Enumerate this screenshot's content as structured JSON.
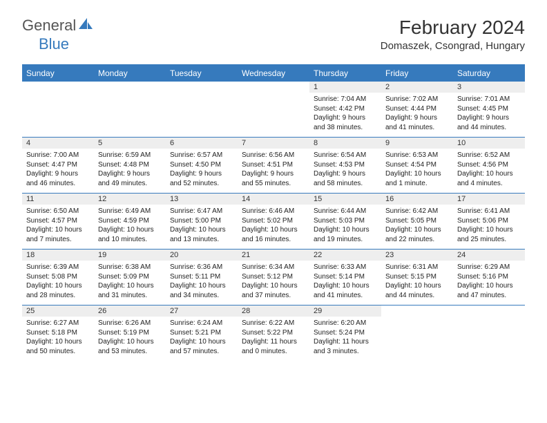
{
  "brand": {
    "part1": "General",
    "part2": "Blue"
  },
  "title": "February 2024",
  "location": "Domaszek, Csongrad, Hungary",
  "colors": {
    "header_bg": "#367abd",
    "header_fg": "#ffffff",
    "daynum_bg": "#eeeeee",
    "border": "#367abd",
    "text": "#222222"
  },
  "fonts": {
    "title_size": 28,
    "location_size": 15,
    "dayhead_size": 12,
    "daynum_size": 11,
    "body_size": 10
  },
  "dayNames": [
    "Sunday",
    "Monday",
    "Tuesday",
    "Wednesday",
    "Thursday",
    "Friday",
    "Saturday"
  ],
  "grid": [
    [
      null,
      null,
      null,
      null,
      {
        "n": "1",
        "sr": "Sunrise: 7:04 AM",
        "ss": "Sunset: 4:42 PM",
        "dl": "Daylight: 9 hours and 38 minutes."
      },
      {
        "n": "2",
        "sr": "Sunrise: 7:02 AM",
        "ss": "Sunset: 4:44 PM",
        "dl": "Daylight: 9 hours and 41 minutes."
      },
      {
        "n": "3",
        "sr": "Sunrise: 7:01 AM",
        "ss": "Sunset: 4:45 PM",
        "dl": "Daylight: 9 hours and 44 minutes."
      }
    ],
    [
      {
        "n": "4",
        "sr": "Sunrise: 7:00 AM",
        "ss": "Sunset: 4:47 PM",
        "dl": "Daylight: 9 hours and 46 minutes."
      },
      {
        "n": "5",
        "sr": "Sunrise: 6:59 AM",
        "ss": "Sunset: 4:48 PM",
        "dl": "Daylight: 9 hours and 49 minutes."
      },
      {
        "n": "6",
        "sr": "Sunrise: 6:57 AM",
        "ss": "Sunset: 4:50 PM",
        "dl": "Daylight: 9 hours and 52 minutes."
      },
      {
        "n": "7",
        "sr": "Sunrise: 6:56 AM",
        "ss": "Sunset: 4:51 PM",
        "dl": "Daylight: 9 hours and 55 minutes."
      },
      {
        "n": "8",
        "sr": "Sunrise: 6:54 AM",
        "ss": "Sunset: 4:53 PM",
        "dl": "Daylight: 9 hours and 58 minutes."
      },
      {
        "n": "9",
        "sr": "Sunrise: 6:53 AM",
        "ss": "Sunset: 4:54 PM",
        "dl": "Daylight: 10 hours and 1 minute."
      },
      {
        "n": "10",
        "sr": "Sunrise: 6:52 AM",
        "ss": "Sunset: 4:56 PM",
        "dl": "Daylight: 10 hours and 4 minutes."
      }
    ],
    [
      {
        "n": "11",
        "sr": "Sunrise: 6:50 AM",
        "ss": "Sunset: 4:57 PM",
        "dl": "Daylight: 10 hours and 7 minutes."
      },
      {
        "n": "12",
        "sr": "Sunrise: 6:49 AM",
        "ss": "Sunset: 4:59 PM",
        "dl": "Daylight: 10 hours and 10 minutes."
      },
      {
        "n": "13",
        "sr": "Sunrise: 6:47 AM",
        "ss": "Sunset: 5:00 PM",
        "dl": "Daylight: 10 hours and 13 minutes."
      },
      {
        "n": "14",
        "sr": "Sunrise: 6:46 AM",
        "ss": "Sunset: 5:02 PM",
        "dl": "Daylight: 10 hours and 16 minutes."
      },
      {
        "n": "15",
        "sr": "Sunrise: 6:44 AM",
        "ss": "Sunset: 5:03 PM",
        "dl": "Daylight: 10 hours and 19 minutes."
      },
      {
        "n": "16",
        "sr": "Sunrise: 6:42 AM",
        "ss": "Sunset: 5:05 PM",
        "dl": "Daylight: 10 hours and 22 minutes."
      },
      {
        "n": "17",
        "sr": "Sunrise: 6:41 AM",
        "ss": "Sunset: 5:06 PM",
        "dl": "Daylight: 10 hours and 25 minutes."
      }
    ],
    [
      {
        "n": "18",
        "sr": "Sunrise: 6:39 AM",
        "ss": "Sunset: 5:08 PM",
        "dl": "Daylight: 10 hours and 28 minutes."
      },
      {
        "n": "19",
        "sr": "Sunrise: 6:38 AM",
        "ss": "Sunset: 5:09 PM",
        "dl": "Daylight: 10 hours and 31 minutes."
      },
      {
        "n": "20",
        "sr": "Sunrise: 6:36 AM",
        "ss": "Sunset: 5:11 PM",
        "dl": "Daylight: 10 hours and 34 minutes."
      },
      {
        "n": "21",
        "sr": "Sunrise: 6:34 AM",
        "ss": "Sunset: 5:12 PM",
        "dl": "Daylight: 10 hours and 37 minutes."
      },
      {
        "n": "22",
        "sr": "Sunrise: 6:33 AM",
        "ss": "Sunset: 5:14 PM",
        "dl": "Daylight: 10 hours and 41 minutes."
      },
      {
        "n": "23",
        "sr": "Sunrise: 6:31 AM",
        "ss": "Sunset: 5:15 PM",
        "dl": "Daylight: 10 hours and 44 minutes."
      },
      {
        "n": "24",
        "sr": "Sunrise: 6:29 AM",
        "ss": "Sunset: 5:16 PM",
        "dl": "Daylight: 10 hours and 47 minutes."
      }
    ],
    [
      {
        "n": "25",
        "sr": "Sunrise: 6:27 AM",
        "ss": "Sunset: 5:18 PM",
        "dl": "Daylight: 10 hours and 50 minutes."
      },
      {
        "n": "26",
        "sr": "Sunrise: 6:26 AM",
        "ss": "Sunset: 5:19 PM",
        "dl": "Daylight: 10 hours and 53 minutes."
      },
      {
        "n": "27",
        "sr": "Sunrise: 6:24 AM",
        "ss": "Sunset: 5:21 PM",
        "dl": "Daylight: 10 hours and 57 minutes."
      },
      {
        "n": "28",
        "sr": "Sunrise: 6:22 AM",
        "ss": "Sunset: 5:22 PM",
        "dl": "Daylight: 11 hours and 0 minutes."
      },
      {
        "n": "29",
        "sr": "Sunrise: 6:20 AM",
        "ss": "Sunset: 5:24 PM",
        "dl": "Daylight: 11 hours and 3 minutes."
      },
      null,
      null
    ]
  ]
}
